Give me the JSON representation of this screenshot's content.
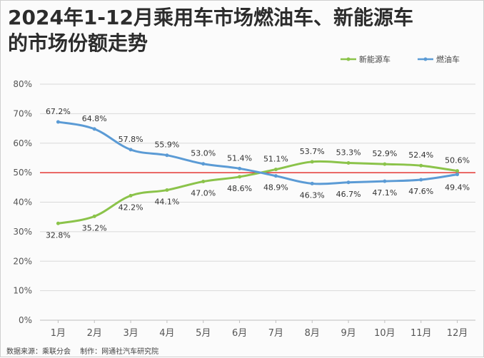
{
  "header": {
    "title_line1": "2024年1-12月乘用车市场燃油车、新能源车",
    "title_line2": "的市场份额走势"
  },
  "footer": {
    "source": "数据来源：乘联分会",
    "maker": "制作：网通社汽车研究院"
  },
  "chart_data": {
    "type": "line",
    "categories": [
      "1月",
      "2月",
      "3月",
      "4月",
      "5月",
      "6月",
      "7月",
      "8月",
      "9月",
      "10月",
      "11月",
      "12月"
    ],
    "series": [
      {
        "name": "新能源车",
        "color": "#8bc34a",
        "values": [
          32.8,
          35.2,
          42.2,
          44.1,
          47.0,
          48.6,
          51.1,
          53.7,
          53.3,
          52.9,
          52.4,
          50.6
        ],
        "labels": [
          "32.8%",
          "35.2%",
          "42.2%",
          "44.1%",
          "47.0%",
          "48.6%",
          "51.1%",
          "53.7%",
          "53.3%",
          "52.9%",
          "52.4%",
          "50.6%"
        ]
      },
      {
        "name": "燃油车",
        "color": "#5b9bd5",
        "values": [
          67.2,
          64.8,
          57.8,
          55.9,
          53.0,
          51.4,
          48.9,
          46.3,
          46.7,
          47.1,
          47.6,
          49.4
        ],
        "labels": [
          "67.2%",
          "64.8%",
          "57.8%",
          "55.9%",
          "53.0%",
          "51.4%",
          "48.9%",
          "46.3%",
          "46.7%",
          "47.1%",
          "47.6%",
          "49.4%"
        ]
      }
    ],
    "ylim": [
      0,
      80
    ],
    "yticks": [
      "0%",
      "10%",
      "20%",
      "30%",
      "40%",
      "50%",
      "60%",
      "70%",
      "80%"
    ],
    "reference_line": {
      "value": 50,
      "color": "#e53935"
    },
    "grid": true,
    "legend_position": "top-right"
  }
}
